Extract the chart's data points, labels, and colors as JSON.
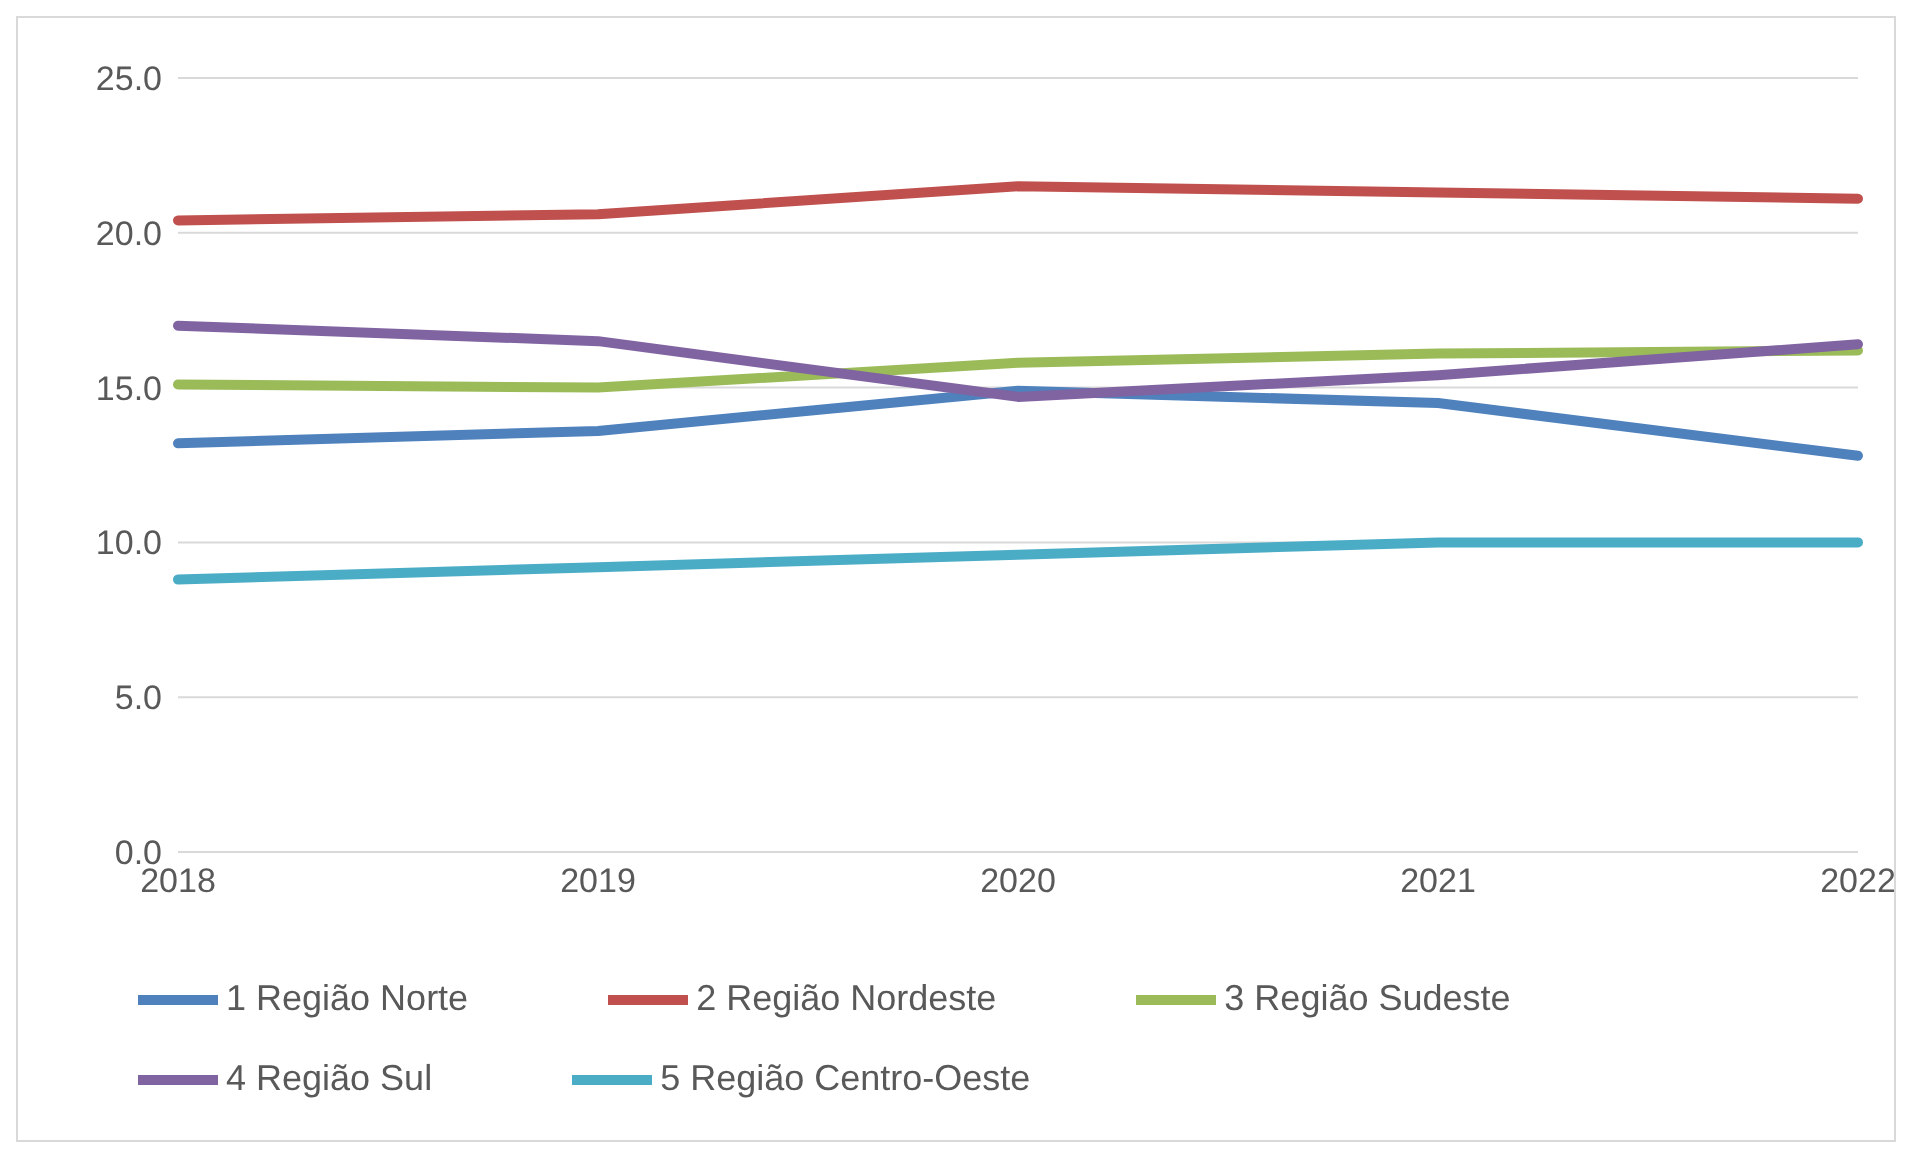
{
  "chart_data": {
    "type": "line",
    "categories": [
      "2018",
      "2019",
      "2020",
      "2021",
      "2022"
    ],
    "series": [
      {
        "name": "1 Região Norte",
        "color": "#4f81bd",
        "values": [
          13.2,
          13.6,
          14.9,
          14.5,
          12.8
        ]
      },
      {
        "name": "2 Região Nordeste",
        "color": "#c0504d",
        "values": [
          20.4,
          20.6,
          21.5,
          21.3,
          21.1
        ]
      },
      {
        "name": "3 Região Sudeste",
        "color": "#9bbb59",
        "values": [
          15.1,
          15.0,
          15.8,
          16.1,
          16.2
        ]
      },
      {
        "name": "4 Região Sul",
        "color": "#8064a2",
        "values": [
          17.0,
          16.5,
          14.7,
          15.4,
          16.4
        ]
      },
      {
        "name": "5 Região Centro-Oeste",
        "color": "#4bacc6",
        "values": [
          8.8,
          9.2,
          9.6,
          10.0,
          10.0
        ]
      }
    ],
    "ylim": [
      0,
      25
    ],
    "yticks": [
      {
        "value": 0,
        "label": "0.0"
      },
      {
        "value": 5,
        "label": "5.0"
      },
      {
        "value": 10,
        "label": "10.0"
      },
      {
        "value": 15,
        "label": "15.0"
      },
      {
        "value": 20,
        "label": "20.0"
      },
      {
        "value": 25,
        "label": "25.0"
      }
    ],
    "grid": "y",
    "legend": "bottom",
    "marker": "none",
    "line_style": "solid"
  }
}
